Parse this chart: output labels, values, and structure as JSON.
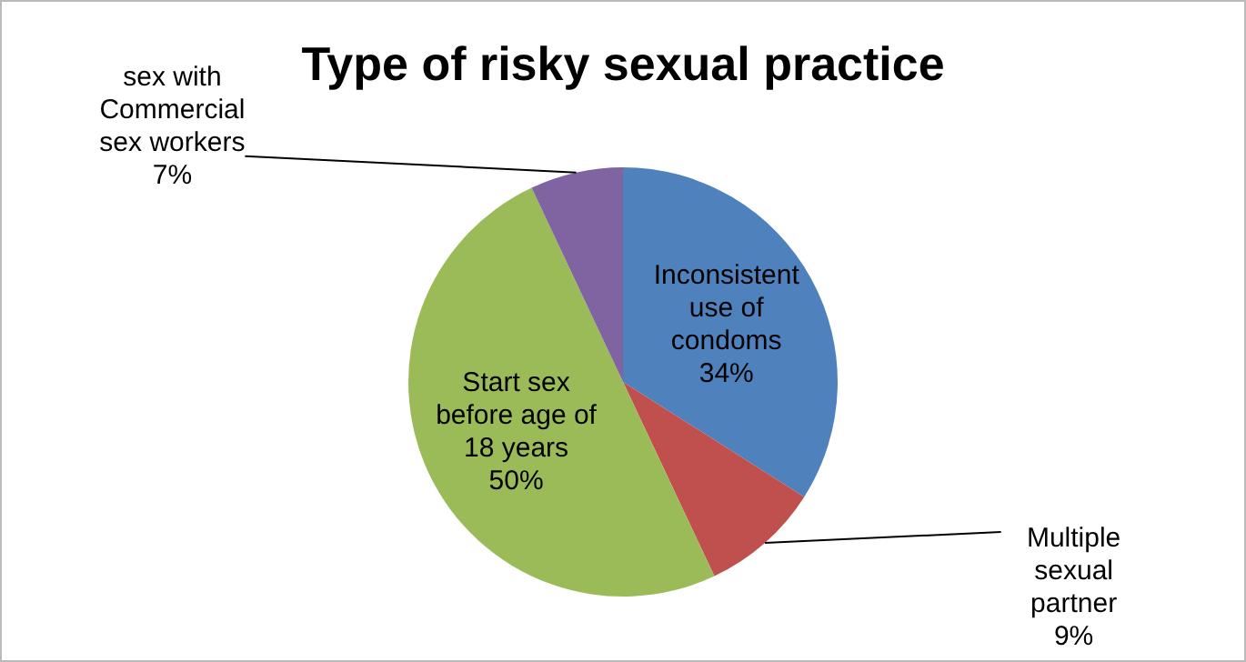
{
  "chart_data": {
    "type": "pie",
    "title": "Type of risky sexual practice",
    "categories": [
      "Inconsistent use of condoms",
      "Multiple sexual partner",
      "Start sex before age of 18 years",
      "sex with Commercial sex workers"
    ],
    "values": [
      34,
      9,
      50,
      7
    ],
    "value_labels": [
      "34%",
      "9%",
      "50%",
      "7%"
    ],
    "colors": [
      "#4f81bd",
      "#c0504d",
      "#9bbb59",
      "#8064a2"
    ],
    "legend": false
  }
}
